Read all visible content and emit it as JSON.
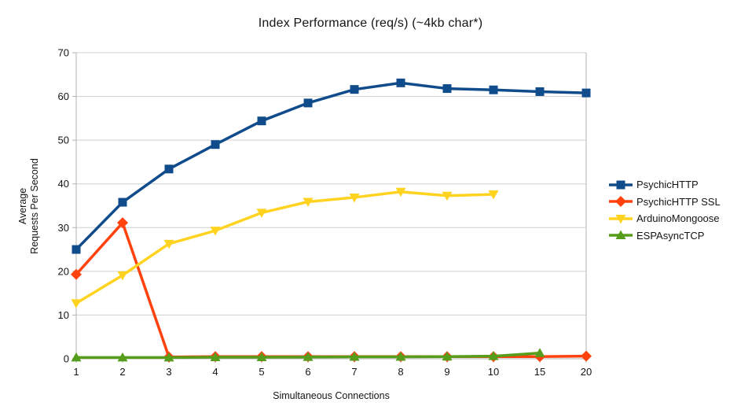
{
  "chart_data": {
    "type": "line",
    "title": "Index Performance (req/s) (~4kb char*)",
    "xlabel": "Simultaneous Connections",
    "ylabel_lines": [
      "Average",
      "Requests Per Second"
    ],
    "categories": [
      "1",
      "2",
      "3",
      "4",
      "5",
      "6",
      "7",
      "8",
      "9",
      "10",
      "15",
      "20"
    ],
    "ylim": [
      0,
      70
    ],
    "yticks": [
      0,
      10,
      20,
      30,
      40,
      50,
      60,
      70
    ],
    "grid": "horizontal",
    "legend_position": "right",
    "series": [
      {
        "name": "PsychicHTTP",
        "color": "#104C8C",
        "marker": "square",
        "values": [
          25.0,
          35.8,
          43.4,
          49.0,
          54.4,
          58.5,
          61.6,
          63.1,
          61.8,
          61.5,
          61.1,
          60.8
        ]
      },
      {
        "name": "PsychicHTTP SSL",
        "color": "#FF420E",
        "marker": "diamond",
        "values": [
          19.3,
          31.1,
          0.4,
          0.5,
          0.5,
          0.5,
          0.5,
          0.5,
          0.5,
          0.5,
          0.5,
          0.6
        ]
      },
      {
        "name": "ArduinoMongoose",
        "color": "#FFD320",
        "marker": "triangle-down",
        "values": [
          12.7,
          19.1,
          26.3,
          29.3,
          33.4,
          35.9,
          36.9,
          38.2,
          37.3,
          37.6,
          null,
          null
        ]
      },
      {
        "name": "ESPAsyncTCP",
        "color": "#579D1C",
        "marker": "triangle-up",
        "values": [
          0.3,
          0.3,
          0.3,
          0.35,
          0.35,
          0.4,
          0.45,
          0.45,
          0.5,
          0.6,
          1.3,
          null
        ]
      }
    ],
    "colors": {
      "background": "#ffffff",
      "gridline": "#cfcfcf",
      "axis": "#b3b3b3",
      "text": "#141414"
    }
  }
}
